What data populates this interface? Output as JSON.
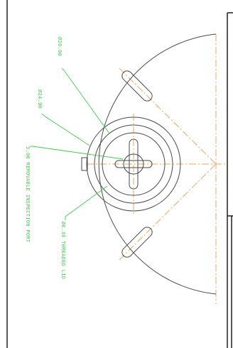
{
  "colors": {
    "background": "#ffffff",
    "geometry": "#4a4a4a",
    "centerline": "#f0a45c",
    "callout": "#3fcf4a",
    "frame": "#111111"
  },
  "callouts": {
    "dia_outer": "Ø20.00",
    "dia_inner": "Ø24.00",
    "removable_port": "5.00 REMOVABLE INSPECTION PORT",
    "threaded_lid": "Ø6.38 THREADED LID"
  }
}
